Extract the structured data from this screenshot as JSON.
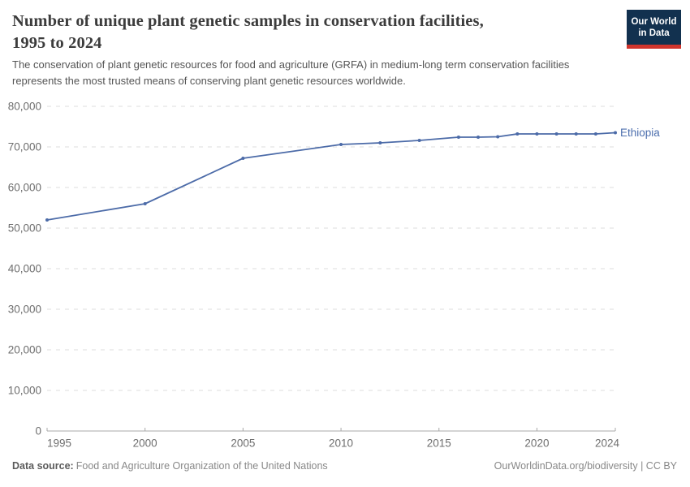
{
  "header": {
    "title": "Number of unique plant genetic samples in conservation facilities, 1995 to 2024",
    "title_line1": "Number of unique plant genetic samples in conservation facilities,",
    "title_line2": "1995 to 2024",
    "subtitle": "The conservation of plant genetic resources for food and agriculture (GRFA) in medium-long term conservation facilities represents the most trusted means of conserving plant genetic resources worldwide.",
    "subtitle_line1": "The conservation of plant genetic resources for food and agriculture (GRFA) in medium-long term conservation facilities",
    "subtitle_line2": "represents the most trusted means of conserving plant genetic resources worldwide.",
    "logo_line1": "Our World",
    "logo_line2": "in Data",
    "logo_bg_color": "#12314f",
    "logo_accent_color": "#d0342c"
  },
  "chart_data": {
    "type": "line",
    "title": "Number of unique plant genetic samples in conservation facilities, 1995 to 2024",
    "xlabel": "",
    "ylabel": "",
    "x": [
      1995,
      2000,
      2005,
      2010,
      2012,
      2014,
      2016,
      2017,
      2018,
      2019,
      2020,
      2021,
      2022,
      2023,
      2024
    ],
    "series": [
      {
        "name": "Ethiopia",
        "color": "#4c6ba8",
        "values": [
          52000,
          56000,
          67200,
          70600,
          71000,
          71600,
          72400,
          72400,
          72500,
          73200,
          73200,
          73200,
          73200,
          73200,
          73500
        ]
      }
    ],
    "xlim": [
      1995,
      2024
    ],
    "ylim": [
      0,
      80000
    ],
    "x_ticks": [
      1995,
      2000,
      2005,
      2010,
      2015,
      2020,
      2024
    ],
    "y_ticks": [
      0,
      10000,
      20000,
      30000,
      40000,
      50000,
      60000,
      70000,
      80000
    ],
    "grid": "horizontal-dashed",
    "legend": "inline-end-label",
    "colors": {
      "grid": "#dcdcdc",
      "axis": "#a8a8a8",
      "tick_label": "#6e6e6e",
      "entity_label": "#4d6fae"
    }
  },
  "footer": {
    "datasource_label": "Data source:",
    "datasource_value": "Food and Agriculture Organization of the United Nations",
    "attribution": "OurWorldinData.org/biodiversity | CC BY"
  }
}
